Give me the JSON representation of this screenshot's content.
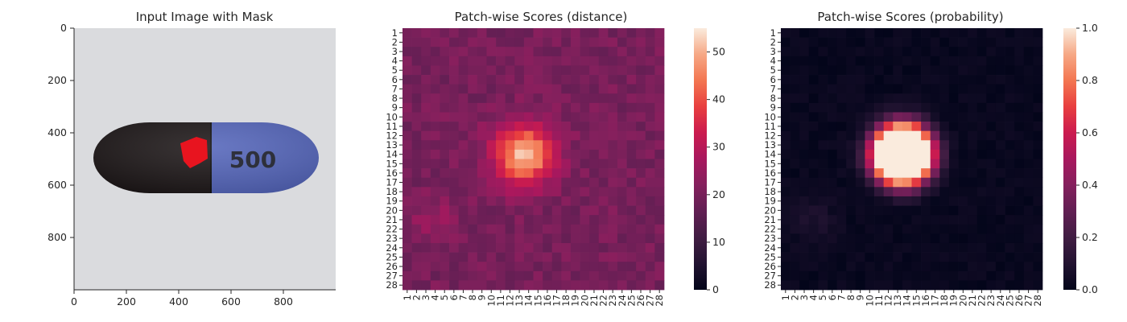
{
  "chart_data": [
    {
      "type": "image",
      "title": "Input Image with Mask",
      "xticks": [
        "0",
        "200",
        "400",
        "600",
        "800"
      ],
      "yticks": [
        "0",
        "200",
        "400",
        "600",
        "800"
      ],
      "xlim": [
        0,
        1000
      ],
      "ylim": [
        0,
        1000
      ],
      "capsule_label": "500",
      "colors": {
        "background": "#d8d9dc",
        "capsule_black": "#1e1819",
        "capsule_blue": "#5566bb",
        "mask": "#e8141f"
      }
    },
    {
      "type": "heatmap",
      "title": "Patch-wise Scores (distance)",
      "rows": [
        "1",
        "2",
        "3",
        "4",
        "5",
        "6",
        "7",
        "8",
        "9",
        "10",
        "11",
        "12",
        "13",
        "14",
        "15",
        "16",
        "17",
        "18",
        "19",
        "20",
        "21",
        "22",
        "23",
        "24",
        "25",
        "26",
        "27",
        "28"
      ],
      "cols": [
        "1",
        "2",
        "3",
        "4",
        "5",
        "6",
        "7",
        "8",
        "9",
        "10",
        "11",
        "12",
        "13",
        "14",
        "15",
        "16",
        "17",
        "18",
        "19",
        "20",
        "21",
        "22",
        "23",
        "24",
        "25",
        "26",
        "27",
        "28"
      ],
      "value_range": [
        0,
        55
      ],
      "colorbar_ticks": [
        "0",
        "10",
        "20",
        "30",
        "40",
        "50"
      ],
      "colormap": "rocket",
      "hotspot": {
        "row": 14,
        "col": 13.5,
        "peak": 55
      },
      "secondary": {
        "row": 21,
        "col": 4,
        "value": 26
      },
      "baseline": 20
    },
    {
      "type": "heatmap",
      "title": "Patch-wise Scores (probability)",
      "rows": [
        "1",
        "2",
        "3",
        "4",
        "5",
        "6",
        "7",
        "8",
        "9",
        "10",
        "11",
        "12",
        "13",
        "14",
        "15",
        "16",
        "17",
        "18",
        "19",
        "20",
        "21",
        "22",
        "23",
        "24",
        "25",
        "26",
        "27",
        "28"
      ],
      "cols": [
        "1",
        "2",
        "3",
        "4",
        "5",
        "6",
        "7",
        "8",
        "9",
        "10",
        "11",
        "12",
        "13",
        "14",
        "15",
        "16",
        "17",
        "18",
        "19",
        "20",
        "21",
        "22",
        "23",
        "24",
        "25",
        "26",
        "27",
        "28"
      ],
      "value_range": [
        0,
        1
      ],
      "colorbar_ticks": [
        "0.0",
        "0.2",
        "0.4",
        "0.6",
        "0.8",
        "1.0"
      ],
      "colormap": "rocket",
      "hotspot": {
        "row": 14,
        "col": 13.5,
        "peak": 1.0
      },
      "baseline": 0
    }
  ]
}
